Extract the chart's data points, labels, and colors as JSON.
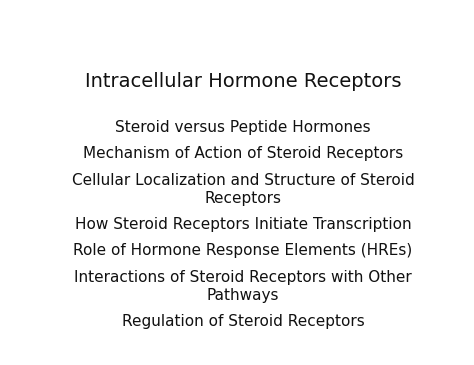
{
  "title": "Intracellular Hormone Receptors",
  "title_fontsize": 14,
  "bullet_items": [
    "Steroid versus Peptide Hormones",
    "Mechanism of Action of Steroid Receptors",
    "Cellular Localization and Structure of Steroid\nReceptors",
    "How Steroid Receptors Initiate Transcription",
    "Role of Hormone Response Elements (HREs)",
    "Interactions of Steroid Receptors with Other\nPathways",
    "Regulation of Steroid Receptors"
  ],
  "bullet_fontsize": 11,
  "background_color": "#ffffff",
  "text_color": "#111111",
  "font_family": "DejaVu Sans"
}
